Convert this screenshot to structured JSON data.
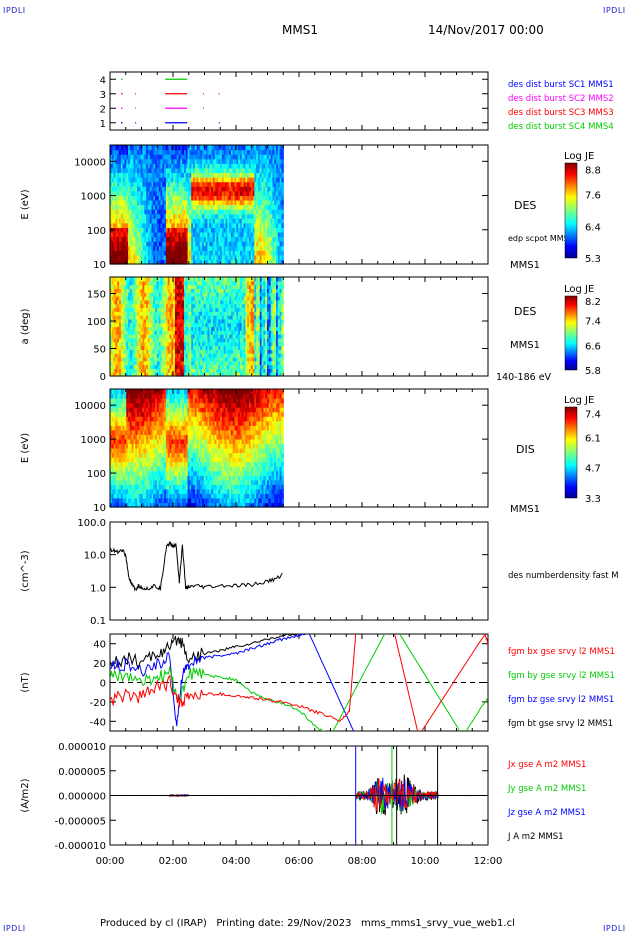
{
  "corners": {
    "label": "IPDLI"
  },
  "header": {
    "mission": "MMS1",
    "datetime": "14/Nov/2017 00:00"
  },
  "footer": {
    "text": "Produced by cl (IRAP)   Printing date: 29/Nov/2023   mms_mms1_srvy_vue_web1.cl"
  },
  "colors": {
    "blue": "#0000ff",
    "magenta": "#ff00ff",
    "red": "#ff0000",
    "green": "#00cc00",
    "black": "#000000"
  },
  "chart_data": [
    {
      "type": "line",
      "title": "",
      "ylim": [
        0.5,
        4.5
      ],
      "yticks": [
        "1",
        "2",
        "3",
        "4"
      ],
      "legend": [
        "des dist burst SC1 MMS1",
        "des dist burst SC2 MMS2",
        "des dist burst SC3 MMS3",
        "des dist burst SC4 MMS4"
      ],
      "legend_colors": [
        "#0000ff",
        "#ff00ff",
        "#ff0000",
        "#00cc00"
      ],
      "series": [
        {
          "level": 4,
          "color": "#00cc00",
          "intervals_hours": [
            [
              0.35,
              0.4
            ],
            [
              1.75,
              2.45
            ]
          ]
        },
        {
          "level": 3,
          "color": "#ff0000",
          "intervals_hours": [
            [
              0.35,
              0.4
            ],
            [
              0.8,
              0.83
            ],
            [
              1.75,
              2.45
            ],
            [
              2.95,
              2.98
            ],
            [
              3.45,
              3.48
            ]
          ]
        },
        {
          "level": 2,
          "color": "#ff00ff",
          "intervals_hours": [
            [
              0.35,
              0.4
            ],
            [
              0.8,
              0.83
            ],
            [
              1.75,
              2.45
            ],
            [
              2.95,
              2.98
            ]
          ]
        },
        {
          "level": 1,
          "color": "#0000ff",
          "intervals_hours": [
            [
              0.35,
              0.4
            ],
            [
              0.8,
              0.83
            ],
            [
              1.75,
              2.45
            ],
            [
              3.45,
              3.48
            ]
          ]
        }
      ]
    },
    {
      "type": "heatmap",
      "ylabel": "E (eV)",
      "yscale": "log",
      "ylim": [
        10,
        30000
      ],
      "yticks": [
        "10",
        "100",
        "1000",
        "10000"
      ],
      "data_end_hours": 5.5,
      "instrument": "DES",
      "overlay_label": "edp scpot MMS1",
      "side_label": "MMS1",
      "colorbar": {
        "title": "Log JE",
        "ticks": [
          "8.8",
          "7.6",
          "6.4",
          "5.3"
        ]
      }
    },
    {
      "type": "heatmap",
      "ylabel": "a (deg)",
      "ylim": [
        0,
        180
      ],
      "yticks": [
        "0",
        "50",
        "100",
        "150"
      ],
      "data_end_hours": 5.5,
      "instrument": "DES",
      "side_label": "MMS1",
      "energy_range": "140-186 eV",
      "colorbar": {
        "title": "Log JE",
        "ticks": [
          "8.2",
          "7.4",
          "6.6",
          "5.8"
        ]
      }
    },
    {
      "type": "heatmap",
      "ylabel": "E (eV)",
      "yscale": "log",
      "ylim": [
        10,
        30000
      ],
      "yticks": [
        "10",
        "100",
        "1000",
        "10000"
      ],
      "data_end_hours": 5.5,
      "instrument": "DIS",
      "side_label": "MMS1",
      "colorbar": {
        "title": "Log JE",
        "ticks": [
          "7.4",
          "6.1",
          "4.7",
          "3.3"
        ]
      }
    },
    {
      "type": "line",
      "ylabel": "(cm^-3)",
      "yscale": "log",
      "ylim": [
        0.1,
        100
      ],
      "yticks": [
        "0.1",
        "1.0",
        "10.0",
        "100.0"
      ],
      "series": [
        {
          "name": "des numberdensity fast M",
          "color": "#000000",
          "x": [
            0.0,
            0.2,
            0.4,
            0.5,
            0.6,
            0.7,
            0.8,
            0.9,
            1.0,
            1.2,
            1.4,
            1.6,
            1.8,
            1.9,
            2.0,
            2.1,
            2.2,
            2.3,
            2.4,
            2.5,
            2.7,
            3.0,
            3.5,
            4.0,
            4.5,
            5.0,
            5.3,
            5.5
          ],
          "y": [
            15,
            12,
            14,
            9,
            2,
            1.2,
            0.8,
            1.1,
            1.0,
            0.9,
            1.1,
            0.9,
            20,
            22,
            18,
            20,
            1.5,
            20,
            1.0,
            1.0,
            1.1,
            1.0,
            1.1,
            1.1,
            1.2,
            1.5,
            1.9,
            2.6
          ]
        }
      ]
    },
    {
      "type": "line",
      "ylabel": "(nT)",
      "ylim": [
        -50,
        50
      ],
      "yticks": [
        "-40",
        "-20",
        "0",
        "20",
        "40"
      ],
      "legend": [
        "fgm bx gse srvy l2 MMS1",
        "fgm by gse srvy l2 MMS1",
        "fgm bz gse srvy l2 MMS1",
        "fgm bt gse srvy l2 MMS1"
      ],
      "series": [
        {
          "name": "fgm bt gse srvy l2 MMS1",
          "color": "#000000",
          "x": [
            0.0,
            0.5,
            1.0,
            1.5,
            1.9,
            2.2,
            2.5,
            3.0,
            3.5,
            4.0,
            4.5,
            5.0,
            5.5,
            6.0,
            6.3
          ],
          "y": [
            20,
            25,
            20,
            30,
            35,
            45,
            25,
            30,
            33,
            37,
            40,
            45,
            48,
            50,
            52
          ]
        },
        {
          "name": "fgm bz gse srvy l2 MMS1",
          "color": "#0000ff",
          "x": [
            0.0,
            0.5,
            1.0,
            1.5,
            1.9,
            2.1,
            2.3,
            2.5,
            3.0,
            3.5,
            4.0,
            4.5,
            5.0,
            5.5,
            6.0,
            6.3,
            7.8
          ],
          "y": [
            15,
            18,
            10,
            20,
            25,
            -45,
            10,
            20,
            25,
            28,
            30,
            35,
            40,
            45,
            48,
            52,
            -55
          ]
        },
        {
          "name": "fgm by gse srvy l2 MMS1",
          "color": "#00cc00",
          "x": [
            0.0,
            0.5,
            1.0,
            1.5,
            1.9,
            2.2,
            2.5,
            3.0,
            3.5,
            4.0,
            4.5,
            5.0,
            5.5,
            6.0,
            6.5,
            7.0,
            8.8,
            9.1,
            11.2,
            12.0
          ],
          "y": [
            5,
            8,
            0,
            5,
            10,
            -20,
            10,
            8,
            5,
            3,
            -10,
            -18,
            -22,
            -28,
            -45,
            -55,
            55,
            55,
            -55,
            -15
          ]
        },
        {
          "name": "fgm bx gse srvy l2 MMS1",
          "color": "#ff0000",
          "x": [
            0.0,
            0.5,
            1.0,
            1.5,
            1.9,
            2.2,
            2.5,
            3.0,
            3.5,
            4.0,
            4.5,
            5.0,
            5.5,
            6.0,
            6.5,
            7.0,
            7.3,
            7.6,
            7.8,
            9.0,
            9.8,
            11.9,
            12.0
          ],
          "y": [
            -20,
            -12,
            -15,
            -5,
            0,
            -20,
            -15,
            -12,
            -12,
            -14,
            -16,
            -18,
            -20,
            -24,
            -30,
            -35,
            -40,
            -30,
            50,
            55,
            -55,
            50,
            40
          ]
        }
      ]
    },
    {
      "type": "line",
      "ylabel": "(A/m2)",
      "ylim": [
        -1e-05,
        1e-05
      ],
      "yticks": [
        "-0.000010",
        "-0.000005",
        "0.000000",
        "0.000005",
        "0.000010"
      ],
      "xticks": [
        "00:00",
        "02:00",
        "04:00",
        "06:00",
        "08:00",
        "10:00",
        "12:00"
      ],
      "legend": [
        "Jx gse A m2 MMS1",
        "Jy gse A m2 MMS1",
        "Jz gse A m2 MMS1",
        "J A m2 MMS1"
      ],
      "legend_colors": [
        "#ff0000",
        "#00cc00",
        "#0000ff",
        "#000000"
      ],
      "note": "near zero until 07:50, strong fluctuations 07:50-10:30 saturating the axis"
    }
  ]
}
